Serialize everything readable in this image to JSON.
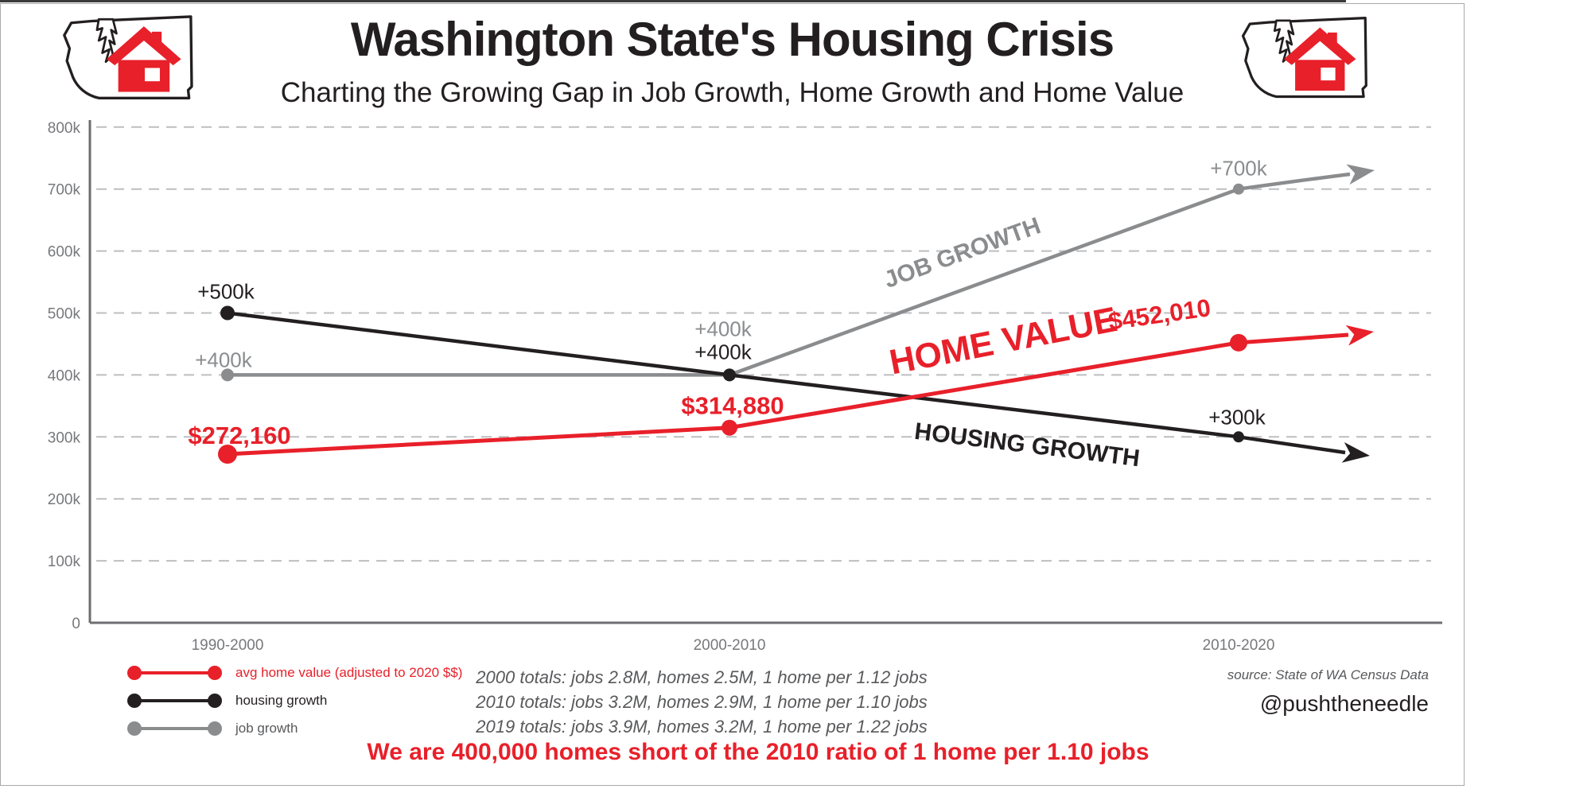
{
  "header": {
    "title": "Washington State's Housing Crisis",
    "subtitle": "Charting the Growing Gap in Job Growth, Home Growth and Home Value"
  },
  "chart_data": {
    "type": "line",
    "categories": [
      "1990-2000",
      "2000-2010",
      "2010-2020"
    ],
    "series": [
      {
        "key": "job_growth",
        "name": "job growth",
        "color": "#8a8c8e",
        "values": [
          400000,
          400000,
          700000
        ],
        "point_labels": [
          "+400k",
          "+400k",
          "+700k"
        ]
      },
      {
        "key": "housing_growth",
        "name": "housing growth",
        "color": "#231f20",
        "values": [
          500000,
          400000,
          300000
        ],
        "point_labels": [
          "+500k",
          "+400k",
          "+300k"
        ]
      },
      {
        "key": "home_value",
        "name": "avg home value (adjusted to 2020 $$)",
        "color": "#e8202a",
        "values": [
          272160,
          314880,
          452010
        ],
        "point_labels": [
          "$272,160",
          "$314,880",
          "$452,010"
        ]
      }
    ],
    "ylim": [
      0,
      800000
    ],
    "y_ticks": [
      {
        "label": "0",
        "value": 0
      },
      {
        "label": "100k",
        "value": 100000
      },
      {
        "label": "200k",
        "value": 200000
      },
      {
        "label": "300k",
        "value": 300000
      },
      {
        "label": "400k",
        "value": 400000
      },
      {
        "label": "500k",
        "value": 500000
      },
      {
        "label": "600k",
        "value": 600000
      },
      {
        "label": "700k",
        "value": 700000
      },
      {
        "label": "800k",
        "value": 800000
      }
    ],
    "grid": "horizontal-dashed",
    "legend_position": "bottom-left",
    "line_annotations": [
      {
        "key": "job_growth",
        "text": "JOB GROWTH"
      },
      {
        "key": "home_value",
        "text": "HOME VALUE"
      },
      {
        "key": "housing_growth",
        "text": "HOUSING GROWTH"
      }
    ]
  },
  "legend": [
    {
      "series": "home_value",
      "label": "avg home value (adjusted to 2020 $$)"
    },
    {
      "series": "housing_growth",
      "label": "housing growth"
    },
    {
      "series": "job_growth",
      "label": "job growth"
    }
  ],
  "notes": [
    "2000 totals: jobs 2.8M, homes 2.5M, 1 home per 1.12 jobs",
    "2010 totals: jobs 3.2M, homes 2.9M, 1 home per 1.10 jobs",
    "2019 totals: jobs 3.9M, homes 3.2M, 1 home per 1.22 jobs"
  ],
  "conclusion": "We are 400,000 homes short of the 2010 ratio of 1 home per 1.10 jobs",
  "source": "source: State of WA Census Data",
  "handle": "@pushtheneedle",
  "colors": {
    "accent_red": "#e8202a",
    "line_black": "#231f20",
    "line_gray": "#8a8c8e",
    "grid_gray": "#bcbec0",
    "axis_gray": "#6d6e71",
    "note_gray": "#58595b"
  }
}
